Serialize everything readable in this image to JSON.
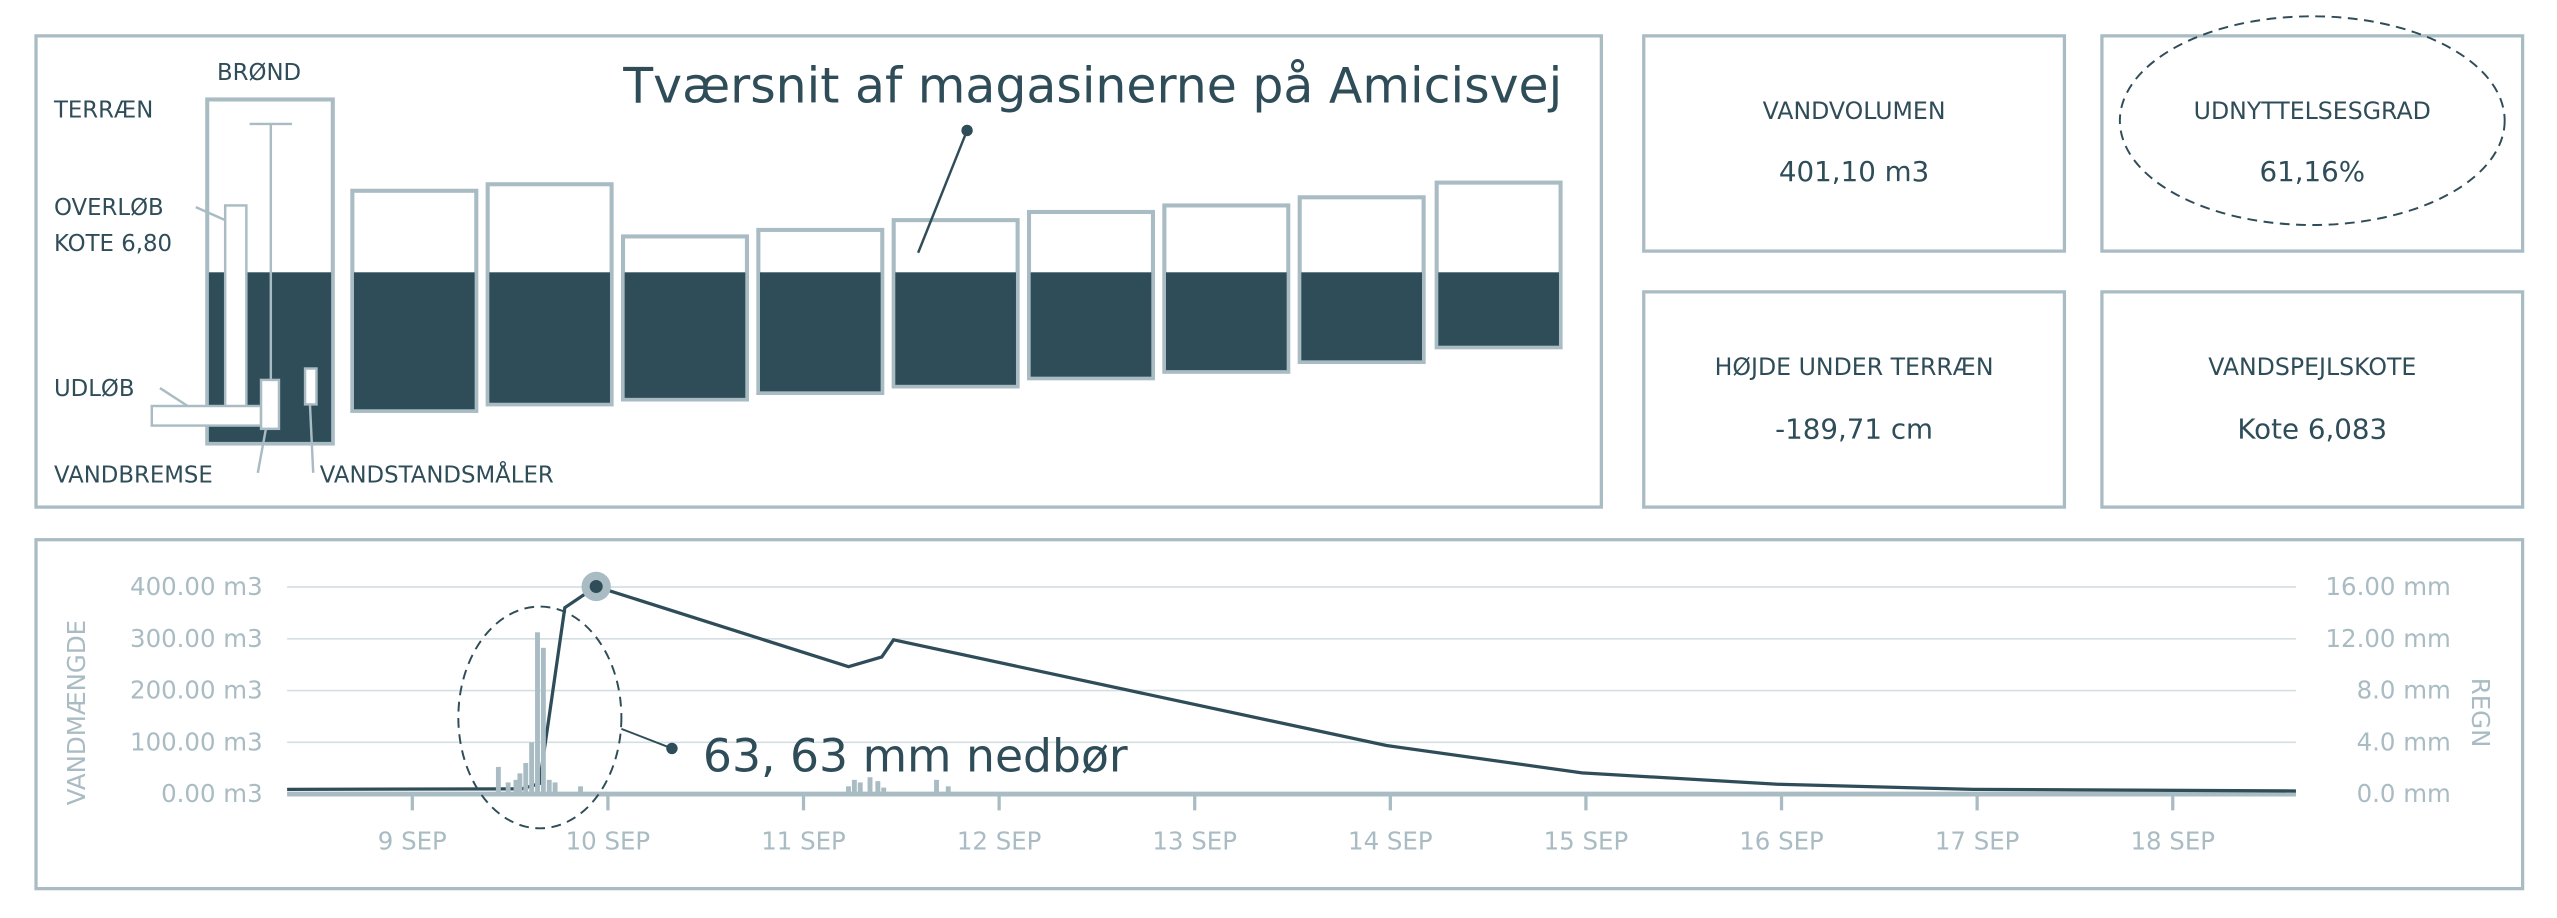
{
  "cross_section": {
    "title": "Tværsnit af magasinerne på Amicisvej",
    "labels": {
      "well": "BRØND",
      "terrain": "TERRÆN",
      "overflow": [
        "OVERLØB",
        "KOTE 6,80"
      ],
      "outlet": "UDLØB",
      "brake": "VANDBREMSE",
      "gauge": "VANDSTANDSMÅLER"
    }
  },
  "cards": [
    {
      "title": "VANDVOLUMEN",
      "value": "401,10 m3"
    },
    {
      "title": "UDNYTTELSESGRAD",
      "value": "61,16%"
    },
    {
      "title": "HØJDE UNDER TERRÆN",
      "value": "-189,71 cm"
    },
    {
      "title": "VANDSPEJLSKOTE",
      "value": "Kote 6,083"
    }
  ],
  "chart_data": {
    "type": "line",
    "y_label": "VANDMÆNGDE",
    "y2_label": "REGN",
    "annotation": "63, 63 mm nedbør",
    "xlim": [
      8.36,
      18.63
    ],
    "xticks": [
      {
        "value": 9,
        "label": "9 SEP"
      },
      {
        "value": 10,
        "label": "10 SEP"
      },
      {
        "value": 11,
        "label": "11 SEP"
      },
      {
        "value": 12,
        "label": "12 SEP"
      },
      {
        "value": 13,
        "label": "13 SEP"
      },
      {
        "value": 14,
        "label": "14 SEP"
      },
      {
        "value": 15,
        "label": "15 SEP"
      },
      {
        "value": 16,
        "label": "16 SEP"
      },
      {
        "value": 17,
        "label": "17 SEP"
      },
      {
        "value": 18,
        "label": "18 SEP"
      }
    ],
    "ylim": [
      0,
      400
    ],
    "yticks": [
      {
        "value": 0,
        "label": "0.00 m3"
      },
      {
        "value": 100,
        "label": "100.00 m3"
      },
      {
        "value": 200,
        "label": "200.00 m3"
      },
      {
        "value": 300,
        "label": "300.00 m3"
      },
      {
        "value": 400,
        "label": "400.00 m3"
      }
    ],
    "y2lim": [
      0,
      16
    ],
    "y2ticks": [
      {
        "value": 0,
        "label": "0.0 mm"
      },
      {
        "value": 4,
        "label": "4.0 mm"
      },
      {
        "value": 8,
        "label": "8.0 mm"
      },
      {
        "value": 12,
        "label": "12.00 mm"
      },
      {
        "value": 16,
        "label": "16.00 mm"
      }
    ],
    "grid": true,
    "series": [
      {
        "type": "line",
        "color": "#2f4d59",
        "x": [
          8.36,
          9.56,
          9.65,
          9.7,
          9.78,
          9.94,
          11.23,
          11.4,
          11.46,
          12.73,
          13.98,
          14.98,
          15.98,
          16.98,
          18.63
        ],
        "values": [
          9,
          10,
          20,
          150,
          360,
          401,
          246,
          265,
          298,
          195,
          94,
          41,
          19,
          9,
          6
        ]
      },
      {
        "type": "bar",
        "axis": "y2",
        "color": "#a9bcc3",
        "x": [
          9.44,
          9.49,
          9.53,
          9.55,
          9.58,
          9.61,
          9.64,
          9.67,
          9.7,
          9.73,
          9.86,
          11.23,
          11.26,
          11.29,
          11.34,
          11.38,
          11.41,
          11.68,
          11.74
        ],
        "values": [
          2.1,
          0.9,
          1.1,
          1.6,
          2.4,
          4.0,
          12.5,
          11.3,
          1.1,
          0.9,
          0.6,
          0.6,
          1.1,
          0.9,
          1.3,
          1.0,
          0.5,
          1.1,
          0.6
        ]
      }
    ]
  }
}
